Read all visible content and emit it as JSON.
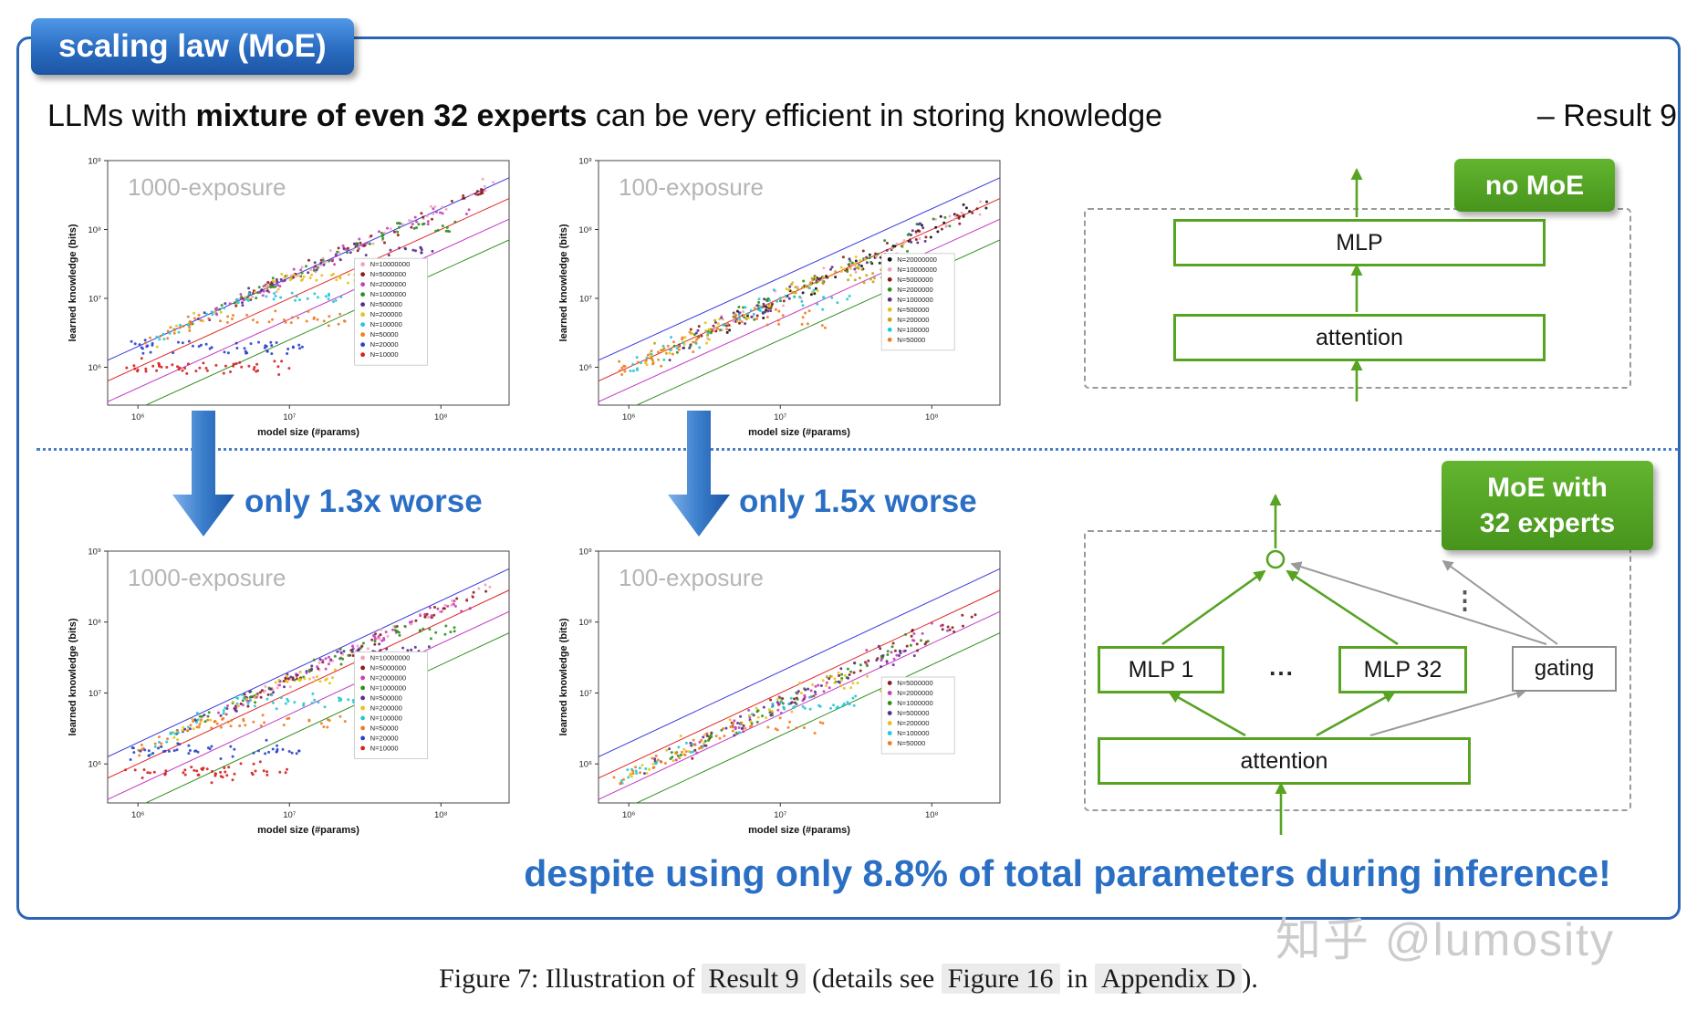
{
  "badge": {
    "label": "scaling law (MoE)"
  },
  "headline": {
    "pre": "LLMs with ",
    "bold": "mixture of even 32 experts",
    "post": " can be very efficient in storing knowledge",
    "result": "– Result 9"
  },
  "annotations": {
    "arrow1": "only 1.3x worse",
    "arrow2": "only 1.5x worse",
    "bottom_note": "despite using only 8.8% of total parameters during inference!"
  },
  "watermark": "知乎 @lumosity",
  "caption": {
    "p1": "Figure 7:  Illustration of ",
    "box1": "Result 9",
    "p2": " (details see ",
    "box2": "Figure 16",
    "p3": " in ",
    "box3": "Appendix D",
    "p4": ")."
  },
  "diagram_no_moe": {
    "badge": "no MoE",
    "mlp": "MLP",
    "attention": "attention"
  },
  "diagram_moe": {
    "badge_line1": "MoE with",
    "badge_line2": "32 experts",
    "mlp1": "MLP 1",
    "dots": "...",
    "mlp32": "MLP 32",
    "gating": "gating",
    "attention": "attention",
    "vdots": "⋮"
  },
  "chart_data": [
    {
      "type": "scatter",
      "title": "1000-exposure",
      "xlabel": "model size (#params)",
      "ylabel": "learned knowledge (bits)",
      "xlim_log10": [
        5.8,
        8.45
      ],
      "ylim_log10": [
        5.45,
        9.0
      ],
      "x_ticks": [
        {
          "v": 6,
          "label": "10⁶"
        },
        {
          "v": 7,
          "label": "10⁷"
        },
        {
          "v": 8,
          "label": "10⁸"
        }
      ],
      "y_ticks": [
        {
          "v": 6,
          "label": "10⁶"
        },
        {
          "v": 7,
          "label": "10⁷"
        },
        {
          "v": 8,
          "label": "10⁸"
        },
        {
          "v": 9,
          "label": "10⁹"
        }
      ],
      "ref_lines": [
        {
          "color": "#3a3ae0",
          "offset": 0.301
        },
        {
          "color": "#e02828",
          "offset": 0.0
        },
        {
          "color": "#c238c2",
          "offset": -0.301
        },
        {
          "color": "#2f8f1f",
          "offset": -0.602
        }
      ],
      "sigma": 0.05,
      "legend": {
        "fx": 0.615,
        "fy": 0.4
      },
      "series": [
        {
          "label": "N=10000000",
          "color": "#f2a3bd",
          "offset": 0.301,
          "plateau": 9.3,
          "x_range": [
            6.75,
            8.35
          ]
        },
        {
          "label": "N=5000000",
          "color": "#8e1b1b",
          "offset": 0.301,
          "plateau": 8.7,
          "x_range": [
            6.6,
            8.3
          ]
        },
        {
          "label": "N=2000000",
          "color": "#c43fb9",
          "offset": 0.301,
          "plateau": 8.3,
          "x_range": [
            6.5,
            8.2
          ]
        },
        {
          "label": "N=1000000",
          "color": "#2f8f1f",
          "offset": 0.301,
          "plateau": 8.0,
          "x_range": [
            6.35,
            8.1
          ]
        },
        {
          "label": "N=500000",
          "color": "#5a2d91",
          "offset": 0.301,
          "plateau": 7.7,
          "x_range": [
            6.25,
            7.95
          ]
        },
        {
          "label": "N=200000",
          "color": "#e8c21a",
          "offset": 0.301,
          "plateau": 7.3,
          "x_range": [
            6.1,
            7.8
          ]
        },
        {
          "label": "N=100000",
          "color": "#27c6d8",
          "offset": 0.301,
          "plateau": 7.0,
          "x_range": [
            6.05,
            7.6
          ]
        },
        {
          "label": "N=50000",
          "color": "#ef7d1f",
          "offset": 0.301,
          "plateau": 6.7,
          "x_range": [
            6.0,
            7.4
          ]
        },
        {
          "label": "N=20000",
          "color": "#2b43c8",
          "offset": 0.301,
          "plateau": 6.3,
          "x_range": [
            5.95,
            7.2
          ]
        },
        {
          "label": "N=10000",
          "color": "#d62020",
          "offset": 0.301,
          "plateau": 6.0,
          "x_range": [
            5.9,
            7.0
          ]
        }
      ]
    },
    {
      "type": "scatter",
      "title": "100-exposure",
      "xlabel": "model size (#params)",
      "ylabel": "learned knowledge (bits)",
      "xlim_log10": [
        5.8,
        8.45
      ],
      "ylim_log10": [
        5.45,
        9.0
      ],
      "x_ticks": [
        {
          "v": 6,
          "label": "10⁶"
        },
        {
          "v": 7,
          "label": "10⁷"
        },
        {
          "v": 8,
          "label": "10⁸"
        }
      ],
      "y_ticks": [
        {
          "v": 6,
          "label": "10⁶"
        },
        {
          "v": 7,
          "label": "10⁷"
        },
        {
          "v": 8,
          "label": "10⁸"
        },
        {
          "v": 9,
          "label": "10⁹"
        }
      ],
      "ref_lines": [
        {
          "color": "#3a3ae0",
          "offset": 0.301
        },
        {
          "color": "#e02828",
          "offset": 0.0
        },
        {
          "color": "#c238c2",
          "offset": -0.301
        },
        {
          "color": "#2f8f1f",
          "offset": -0.602
        }
      ],
      "sigma": 0.07,
      "legend": {
        "fx": 0.705,
        "fy": 0.38
      },
      "series": [
        {
          "label": "N=20000000",
          "color": "#111111",
          "offset": 0.0,
          "plateau": 9.3,
          "x_range": [
            6.6,
            8.4
          ]
        },
        {
          "label": "N=10000000",
          "color": "#f2a3bd",
          "offset": 0.0,
          "plateau": 9.0,
          "x_range": [
            6.5,
            8.35
          ]
        },
        {
          "label": "N=5000000",
          "color": "#8e1b1b",
          "offset": 0.0,
          "plateau": 8.7,
          "x_range": [
            6.4,
            8.3
          ]
        },
        {
          "label": "N=2000000",
          "color": "#2f8f1f",
          "offset": 0.0,
          "plateau": 8.3,
          "x_range": [
            6.3,
            8.15
          ]
        },
        {
          "label": "N=1000000",
          "color": "#5a2d91",
          "offset": 0.0,
          "plateau": 8.0,
          "x_range": [
            6.2,
            8.0
          ]
        },
        {
          "label": "N=500000",
          "color": "#e8c21a",
          "offset": 0.0,
          "plateau": 7.7,
          "x_range": [
            6.1,
            7.9
          ]
        },
        {
          "label": "N=200000",
          "color": "#c4a21a",
          "offset": 0.0,
          "plateau": 7.3,
          "x_range": [
            6.0,
            7.7
          ]
        },
        {
          "label": "N=100000",
          "color": "#27c6d8",
          "offset": 0.0,
          "plateau": 7.0,
          "x_range": [
            5.95,
            7.5
          ]
        },
        {
          "label": "N=50000",
          "color": "#ef7d1f",
          "offset": 0.0,
          "plateau": 6.7,
          "x_range": [
            5.9,
            7.3
          ]
        }
      ]
    },
    {
      "type": "scatter",
      "title": "1000-exposure",
      "xlabel": "model size (#params)",
      "ylabel": "learned knowledge (bits)",
      "xlim_log10": [
        5.8,
        8.45
      ],
      "ylim_log10": [
        5.45,
        9.0
      ],
      "x_ticks": [
        {
          "v": 6,
          "label": "10⁶"
        },
        {
          "v": 7,
          "label": "10⁷"
        },
        {
          "v": 8,
          "label": "10⁸"
        }
      ],
      "y_ticks": [
        {
          "v": 6,
          "label": "10⁶"
        },
        {
          "v": 7,
          "label": "10⁷"
        },
        {
          "v": 8,
          "label": "10⁸"
        },
        {
          "v": 9,
          "label": "10⁹"
        }
      ],
      "ref_lines": [
        {
          "color": "#3a3ae0",
          "offset": 0.301
        },
        {
          "color": "#e02828",
          "offset": 0.0
        },
        {
          "color": "#c238c2",
          "offset": -0.301
        },
        {
          "color": "#2f8f1f",
          "offset": -0.602
        }
      ],
      "sigma": 0.05,
      "legend": {
        "fx": 0.615,
        "fy": 0.4
      },
      "series": [
        {
          "label": "N=10000000",
          "color": "#f2a3bd",
          "offset": 0.187,
          "plateau": 9.2,
          "x_range": [
            6.75,
            8.35
          ]
        },
        {
          "label": "N=5000000",
          "color": "#8e1b1b",
          "offset": 0.187,
          "plateau": 8.59,
          "x_range": [
            6.6,
            8.3
          ]
        },
        {
          "label": "N=2000000",
          "color": "#c43fb9",
          "offset": 0.187,
          "plateau": 8.19,
          "x_range": [
            6.5,
            8.2
          ]
        },
        {
          "label": "N=1000000",
          "color": "#2f8f1f",
          "offset": 0.187,
          "plateau": 7.89,
          "x_range": [
            6.35,
            8.1
          ]
        },
        {
          "label": "N=500000",
          "color": "#5a2d91",
          "offset": 0.187,
          "plateau": 7.59,
          "x_range": [
            6.25,
            7.95
          ]
        },
        {
          "label": "N=200000",
          "color": "#e8c21a",
          "offset": 0.187,
          "plateau": 7.19,
          "x_range": [
            6.1,
            7.8
          ]
        },
        {
          "label": "N=100000",
          "color": "#27c6d8",
          "offset": 0.187,
          "plateau": 6.89,
          "x_range": [
            6.05,
            7.6
          ]
        },
        {
          "label": "N=50000",
          "color": "#ef7d1f",
          "offset": 0.187,
          "plateau": 6.59,
          "x_range": [
            6.0,
            7.4
          ]
        },
        {
          "label": "N=20000",
          "color": "#2b43c8",
          "offset": 0.187,
          "plateau": 6.19,
          "x_range": [
            5.95,
            7.2
          ]
        },
        {
          "label": "N=10000",
          "color": "#d62020",
          "offset": 0.187,
          "plateau": 5.89,
          "x_range": [
            5.9,
            7.0
          ]
        }
      ]
    },
    {
      "type": "scatter",
      "title": "100-exposure",
      "xlabel": "model size (#params)",
      "ylabel": "learned knowledge (bits)",
      "xlim_log10": [
        5.8,
        8.45
      ],
      "ylim_log10": [
        5.45,
        9.0
      ],
      "x_ticks": [
        {
          "v": 6,
          "label": "10⁶"
        },
        {
          "v": 7,
          "label": "10⁷"
        },
        {
          "v": 8,
          "label": "10⁸"
        }
      ],
      "y_ticks": [
        {
          "v": 6,
          "label": "10⁶"
        },
        {
          "v": 7,
          "label": "10⁷"
        },
        {
          "v": 8,
          "label": "10⁸"
        },
        {
          "v": 9,
          "label": "10⁹"
        }
      ],
      "ref_lines": [
        {
          "color": "#3a3ae0",
          "offset": 0.301
        },
        {
          "color": "#e02828",
          "offset": 0.0
        },
        {
          "color": "#c238c2",
          "offset": -0.301
        },
        {
          "color": "#2f8f1f",
          "offset": -0.602
        }
      ],
      "sigma": 0.07,
      "legend": {
        "fx": 0.705,
        "fy": 0.5
      },
      "series": [
        {
          "label": "N=5000000",
          "color": "#8e1b1b",
          "offset": -0.176,
          "plateau": 8.52,
          "x_range": [
            6.4,
            8.3
          ]
        },
        {
          "label": "N=2000000",
          "color": "#c43fb9",
          "offset": -0.176,
          "plateau": 8.12,
          "x_range": [
            6.3,
            8.15
          ]
        },
        {
          "label": "N=1000000",
          "color": "#2f8f1f",
          "offset": -0.176,
          "plateau": 7.82,
          "x_range": [
            6.2,
            8.0
          ]
        },
        {
          "label": "N=500000",
          "color": "#5a2d91",
          "offset": -0.176,
          "plateau": 7.52,
          "x_range": [
            6.1,
            7.9
          ]
        },
        {
          "label": "N=200000",
          "color": "#e8c21a",
          "offset": -0.176,
          "plateau": 7.13,
          "x_range": [
            6.0,
            7.7
          ]
        },
        {
          "label": "N=100000",
          "color": "#27c6d8",
          "offset": -0.176,
          "plateau": 6.82,
          "x_range": [
            5.95,
            7.5
          ]
        },
        {
          "label": "N=50000",
          "color": "#ef7d1f",
          "offset": -0.176,
          "plateau": 6.52,
          "x_range": [
            5.9,
            7.3
          ]
        }
      ]
    }
  ]
}
